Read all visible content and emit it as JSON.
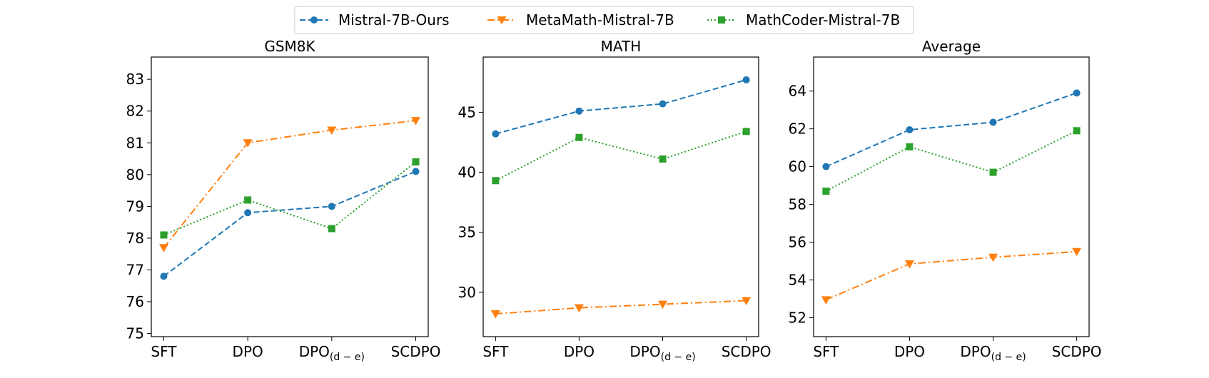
{
  "legend": {
    "placement": "top-center",
    "entries": [
      {
        "name": "Mistral-7B-Ours",
        "color": "#1f77b4",
        "marker": "circle",
        "dash": "dashed"
      },
      {
        "name": "MetaMath-Mistral-7B",
        "color": "#ff7f0e",
        "marker": "triangle-down",
        "dash": "dashdot"
      },
      {
        "name": "MathCoder-Mistral-7B",
        "color": "#2ca02c",
        "marker": "square",
        "dash": "dotted"
      }
    ]
  },
  "chart_data": [
    {
      "type": "line",
      "title": "GSM8K",
      "categories": [
        "SFT",
        "DPO",
        "DPO(d−e)",
        "SCDPO"
      ],
      "category_labels": [
        {
          "main": "SFT",
          "sub": ""
        },
        {
          "main": "DPO",
          "sub": ""
        },
        {
          "main": "DPO",
          "sub": "(d − e)"
        },
        {
          "main": "SCDPO",
          "sub": ""
        }
      ],
      "xlabel": "",
      "ylabel": "",
      "ylim": [
        74.9,
        83.7
      ],
      "yticks": [
        75,
        76,
        77,
        78,
        79,
        80,
        81,
        82,
        83
      ],
      "grid": false,
      "series": [
        {
          "name": "Mistral-7B-Ours",
          "values": [
            76.8,
            78.8,
            79.0,
            80.1
          ]
        },
        {
          "name": "MetaMath-Mistral-7B",
          "values": [
            77.7,
            81.0,
            81.4,
            81.7
          ]
        },
        {
          "name": "MathCoder-Mistral-7B",
          "values": [
            78.1,
            79.2,
            78.3,
            80.4
          ]
        }
      ]
    },
    {
      "type": "line",
      "title": "MATH",
      "categories": [
        "SFT",
        "DPO",
        "DPO(d−e)",
        "SCDPO"
      ],
      "category_labels": [
        {
          "main": "SFT",
          "sub": ""
        },
        {
          "main": "DPO",
          "sub": ""
        },
        {
          "main": "DPO",
          "sub": "(d − e)"
        },
        {
          "main": "SCDPO",
          "sub": ""
        }
      ],
      "xlabel": "",
      "ylabel": "",
      "ylim": [
        26.3,
        49.6
      ],
      "yticks": [
        30,
        35,
        40,
        45
      ],
      "grid": false,
      "series": [
        {
          "name": "Mistral-7B-Ours",
          "values": [
            43.2,
            45.1,
            45.7,
            47.7
          ]
        },
        {
          "name": "MetaMath-Mistral-7B",
          "values": [
            28.2,
            28.7,
            29.0,
            29.3
          ]
        },
        {
          "name": "MathCoder-Mistral-7B",
          "values": [
            39.3,
            42.9,
            41.1,
            43.4
          ]
        }
      ]
    },
    {
      "type": "line",
      "title": "Average",
      "categories": [
        "SFT",
        "DPO",
        "DPO(d−e)",
        "SCDPO"
      ],
      "category_labels": [
        {
          "main": "SFT",
          "sub": ""
        },
        {
          "main": "DPO",
          "sub": ""
        },
        {
          "main": "DPO",
          "sub": "(d − e)"
        },
        {
          "main": "SCDPO",
          "sub": ""
        }
      ],
      "xlabel": "",
      "ylabel": "",
      "ylim": [
        51.0,
        65.8
      ],
      "yticks": [
        52,
        54,
        56,
        58,
        60,
        62,
        64
      ],
      "grid": false,
      "series": [
        {
          "name": "Mistral-7B-Ours",
          "values": [
            60.0,
            61.95,
            62.35,
            63.9
          ]
        },
        {
          "name": "MetaMath-Mistral-7B",
          "values": [
            52.95,
            54.85,
            55.2,
            55.5
          ]
        },
        {
          "name": "MathCoder-Mistral-7B",
          "values": [
            58.7,
            61.05,
            59.7,
            61.9
          ]
        }
      ]
    }
  ]
}
